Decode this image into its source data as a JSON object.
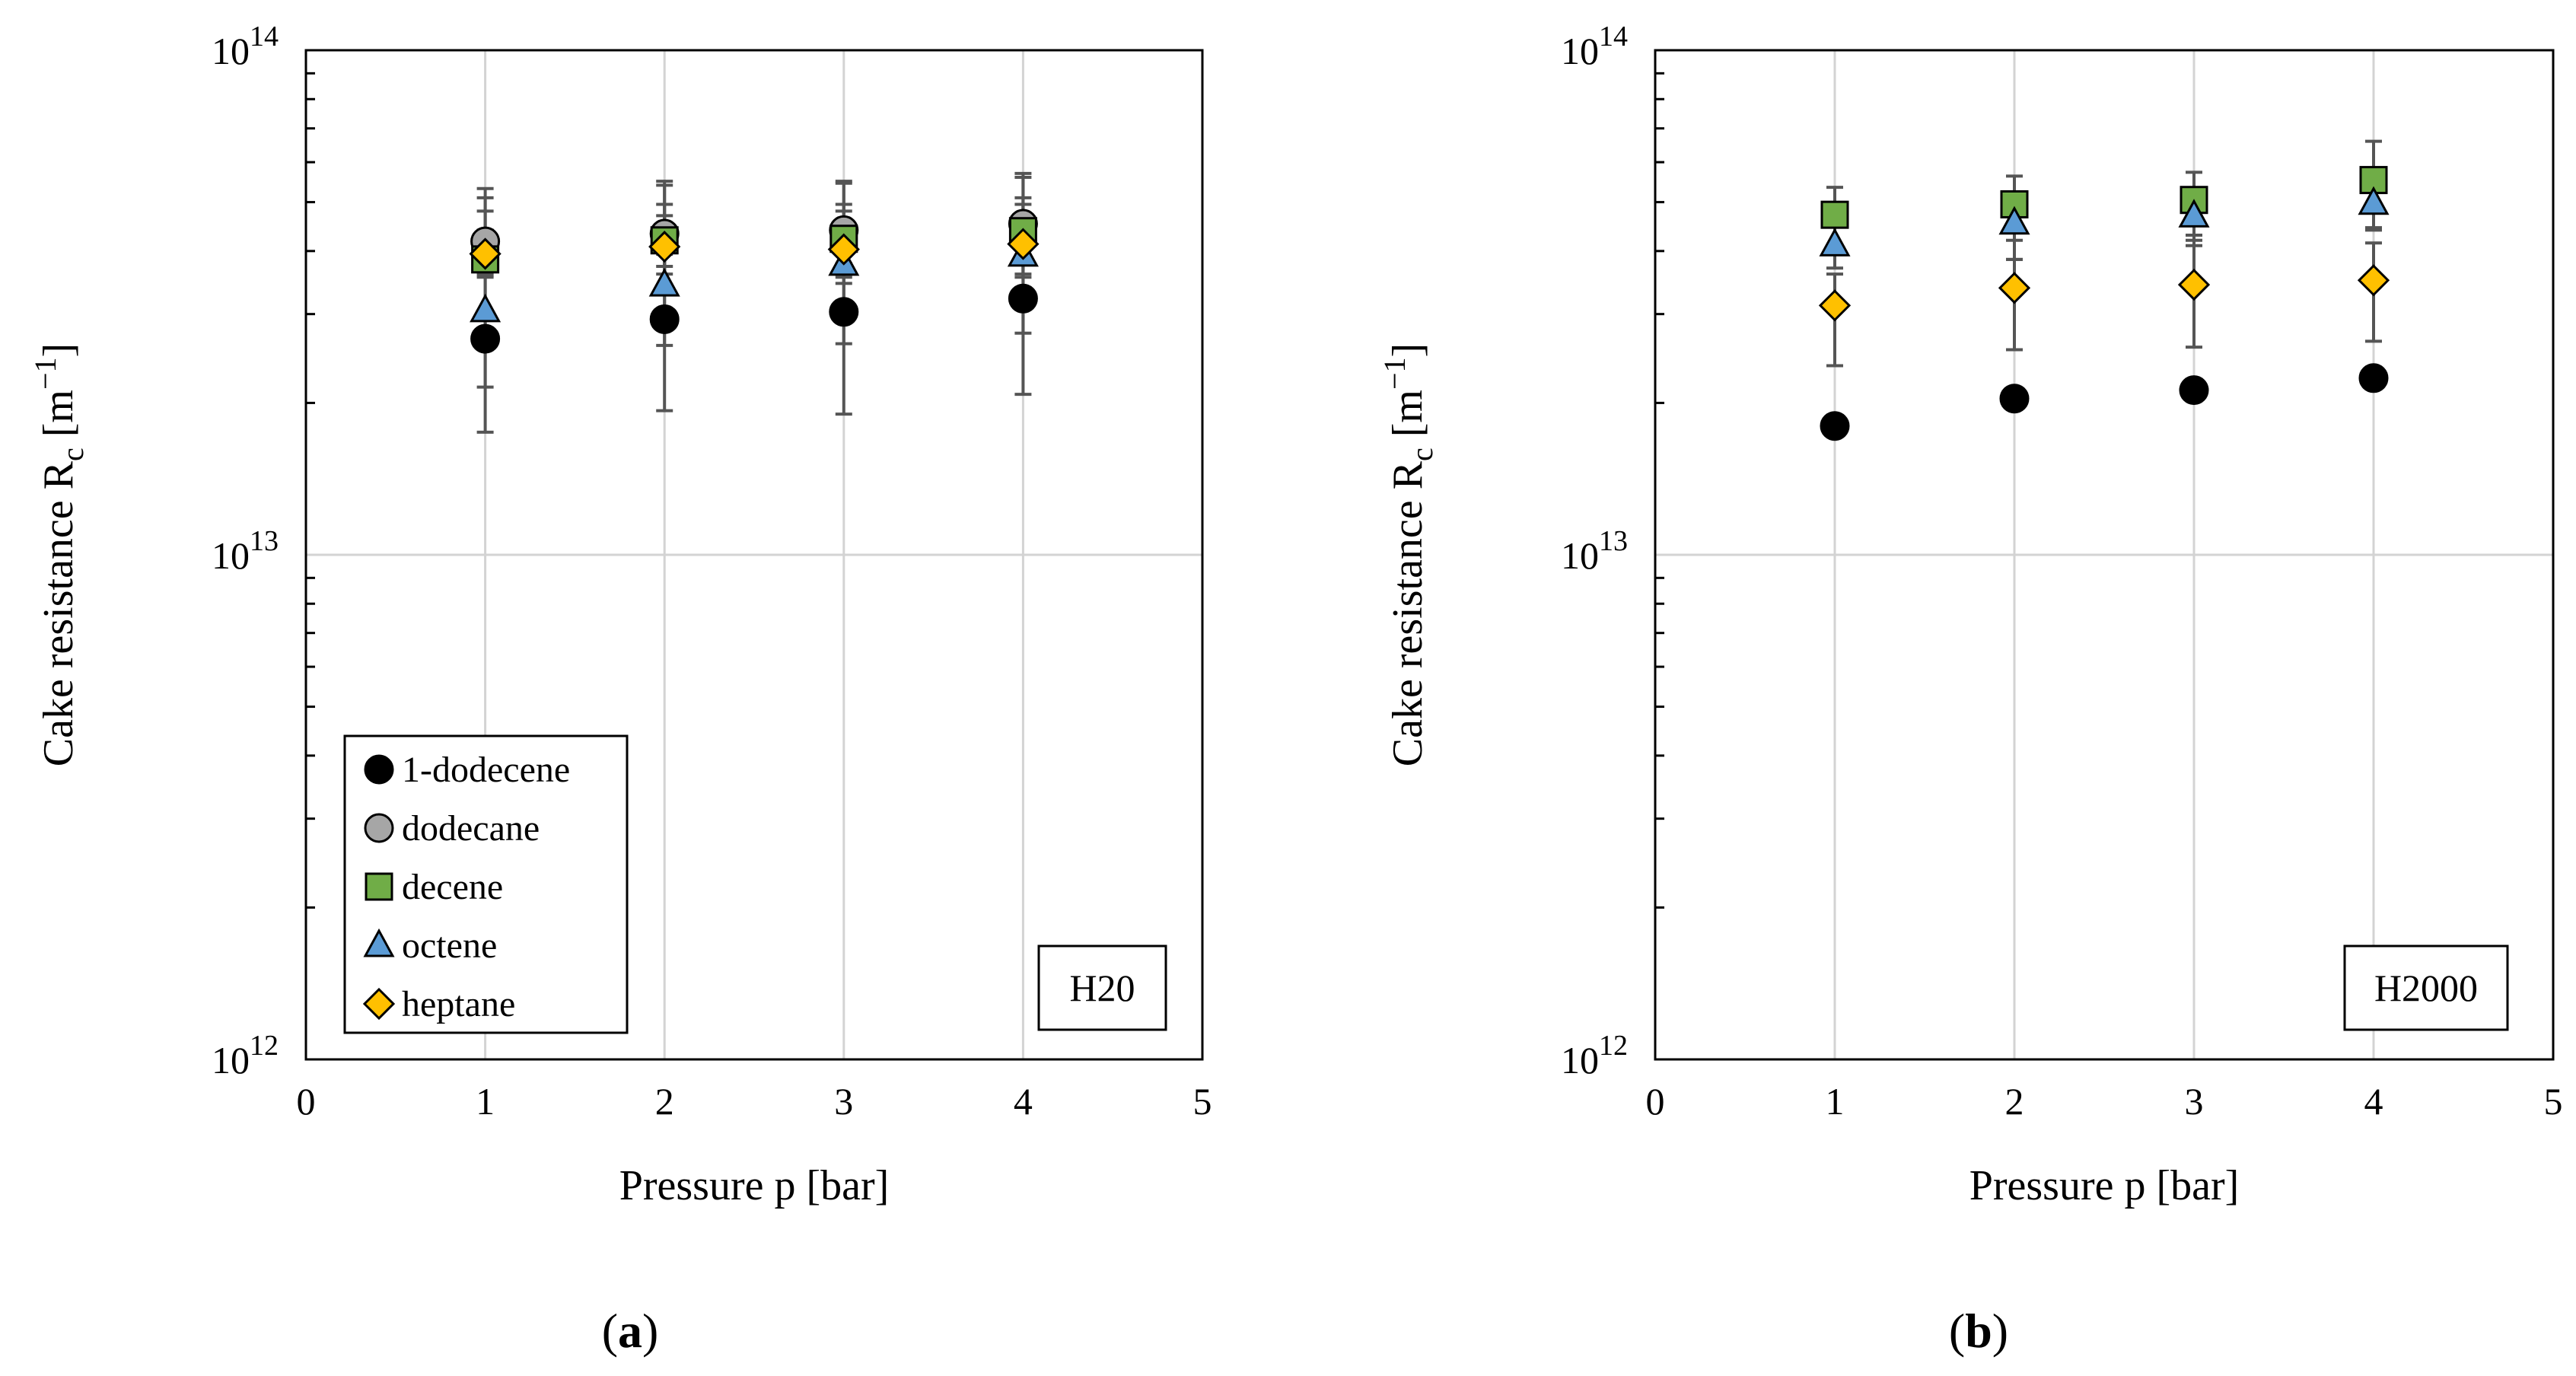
{
  "colors": {
    "1-dodecene": "#000000",
    "dodecane": "#a6a6a6",
    "decene": "#70ad47",
    "octene": "#5b9bd5",
    "heptane": "#ffc000",
    "errorbar": "#555555",
    "grid": "#d3d3d3"
  },
  "chart_data": [
    {
      "id": "a",
      "type": "scatter",
      "panel_label_parts": [
        "(",
        "a",
        ")"
      ],
      "xlabel": "Pressure p [bar]",
      "ylabel_parts": {
        "main": "Cake resistance R",
        "sub": "c",
        "unit_open": " [m",
        "sup": "−1",
        "unit_close": "]"
      },
      "xlim": [
        0,
        5
      ],
      "ylim": [
        1000000000000.0,
        100000000000000.0
      ],
      "yscale": "log",
      "xticks": [
        0,
        1,
        2,
        3,
        4,
        5
      ],
      "yticks": [
        {
          "base": "10",
          "exp": "12"
        },
        {
          "base": "10",
          "exp": "13"
        },
        {
          "base": "10",
          "exp": "14"
        }
      ],
      "annotation": "H20",
      "legend": {
        "position": "bottom-left",
        "entries": [
          "1-dodecene",
          "dodecane",
          "decene",
          "octene",
          "heptane"
        ]
      },
      "series": [
        {
          "name": "1-dodecene",
          "marker": "circle",
          "x": [
            1,
            2,
            3,
            4
          ],
          "y": [
            26800000000000.0,
            29300000000000.0,
            30300000000000.0,
            32200000000000.0
          ],
          "err_low": [
            17500000000000.0,
            19300000000000.0,
            19000000000000.0,
            20800000000000.0
          ],
          "err_high": [
            36200000000000.0,
            39400000000000.0,
            41700000000000.0,
            43500000000000.0
          ]
        },
        {
          "name": "dodecane",
          "marker": "circle",
          "x": [
            1,
            2,
            3,
            4
          ],
          "y": [
            41800000000000.0,
            43300000000000.0,
            44000000000000.0,
            45300000000000.0
          ],
          "err_low": [
            36800000000000.0,
            37300000000000.0,
            37800000000000.0,
            38300000000000.0
          ],
          "err_high": [
            53200000000000.0,
            55000000000000.0,
            55000000000000.0,
            57000000000000.0
          ]
        },
        {
          "name": "decene",
          "marker": "square",
          "x": [
            1,
            2,
            3,
            4
          ],
          "y": [
            38500000000000.0,
            42000000000000.0,
            42300000000000.0,
            43800000000000.0
          ],
          "err_low": [
            35500000000000.0,
            34000000000000.0,
            34500000000000.0,
            35500000000000.0
          ],
          "err_high": [
            51000000000000.0,
            54000000000000.0,
            54500000000000.0,
            56000000000000.0
          ]
        },
        {
          "name": "octene",
          "marker": "triangle",
          "x": [
            1,
            2,
            3,
            4
          ],
          "y": [
            30500000000000.0,
            34300000000000.0,
            37700000000000.0,
            39300000000000.0
          ],
          "err_low": [
            21500000000000.0,
            26000000000000.0,
            26200000000000.0,
            27500000000000.0
          ],
          "err_high": [
            44000000000000.0,
            47000000000000.0,
            48000000000000.0,
            49500000000000.0
          ]
        },
        {
          "name": "heptane",
          "marker": "diamond",
          "x": [
            1,
            2,
            3,
            4
          ],
          "y": [
            39500000000000.0,
            40800000000000.0,
            40300000000000.0,
            41300000000000.0
          ],
          "err_low": [
            35800000000000.0,
            36000000000000.0,
            35500000000000.0,
            36000000000000.0
          ],
          "err_high": [
            48000000000000.0,
            49500000000000.0,
            49500000000000.0,
            51000000000000.0
          ]
        }
      ]
    },
    {
      "id": "b",
      "type": "scatter",
      "panel_label_parts": [
        "(",
        "b",
        ")"
      ],
      "xlabel": "Pressure p [bar]",
      "ylabel_parts": {
        "main": "Cake resistance R",
        "sub": "c",
        "unit_open": " [m",
        "sup": "−1",
        "unit_close": "]"
      },
      "xlim": [
        0,
        5
      ],
      "ylim": [
        1000000000000.0,
        100000000000000.0
      ],
      "yscale": "log",
      "xticks": [
        0,
        1,
        2,
        3,
        4,
        5
      ],
      "yticks": [
        {
          "base": "10",
          "exp": "12"
        },
        {
          "base": "10",
          "exp": "13"
        },
        {
          "base": "10",
          "exp": "14"
        }
      ],
      "annotation": "H2000",
      "legend": null,
      "series": [
        {
          "name": "1-dodecene",
          "marker": "circle",
          "x": [
            1,
            2,
            3,
            4
          ],
          "y": [
            18000000000000.0,
            20400000000000.0,
            21200000000000.0,
            22400000000000.0
          ],
          "err_low": null,
          "err_high": null
        },
        {
          "name": "decene",
          "marker": "square",
          "x": [
            1,
            2,
            3,
            4
          ],
          "y": [
            47200000000000.0,
            49500000000000.0,
            50500000000000.0,
            55300000000000.0
          ],
          "err_low": [
            40500000000000.0,
            42000000000000.0,
            43000000000000.0,
            44500000000000.0
          ],
          "err_high": [
            53500000000000.0,
            56300000000000.0,
            57300000000000.0,
            66000000000000.0
          ]
        },
        {
          "name": "octene",
          "marker": "triangle",
          "x": [
            1,
            2,
            3,
            4
          ],
          "y": [
            41200000000000.0,
            45500000000000.0,
            47000000000000.0,
            49800000000000.0
          ],
          "err_low": [
            37000000000000.0,
            38500000000000.0,
            41000000000000.0,
            44000000000000.0
          ],
          "err_high": [
            48000000000000.0,
            51500000000000.0,
            53000000000000.0,
            55500000000000.0
          ]
        },
        {
          "name": "heptane",
          "marker": "diamond",
          "x": [
            1,
            2,
            3,
            4
          ],
          "y": [
            31200000000000.0,
            33800000000000.0,
            34300000000000.0,
            35000000000000.0
          ],
          "err_low": [
            23700000000000.0,
            25500000000000.0,
            25800000000000.0,
            26500000000000.0
          ],
          "err_high": [
            36000000000000.0,
            38500000000000.0,
            42000000000000.0,
            41500000000000.0
          ]
        }
      ]
    }
  ]
}
